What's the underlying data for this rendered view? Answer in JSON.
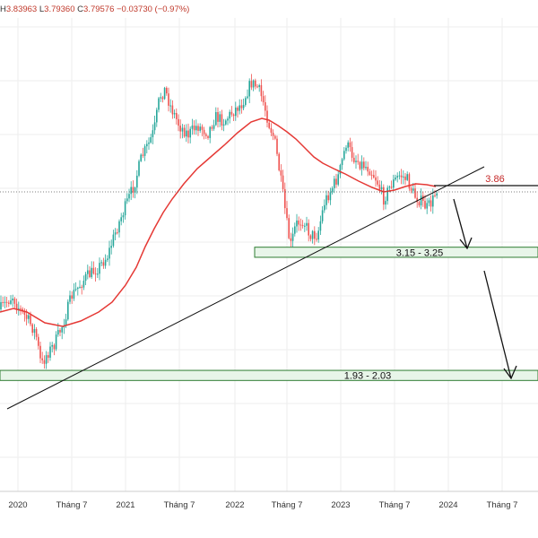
{
  "ohlc": {
    "h_label": "H",
    "h_value": "3.83963",
    "l_label": "L",
    "l_value": "3.79360",
    "c_label": "C",
    "c_value": "3.79576",
    "change": "−0.03730 (−0.97%)"
  },
  "chart_data": {
    "type": "candlestick",
    "x_ticks": [
      "2020",
      "Tháng 7",
      "2021",
      "Tháng 7",
      "2022",
      "Tháng 7",
      "2023",
      "Tháng 7",
      "2024",
      "Tháng 7"
    ],
    "price_level_label": "3.86",
    "price_level": 3.86,
    "zones": [
      {
        "label": "3.15 - 3.25",
        "low": 3.15,
        "high": 3.25
      },
      {
        "label": "1.93 - 2.03",
        "low": 1.93,
        "high": 2.03
      }
    ],
    "colors": {
      "up": "#26a69a",
      "down": "#ef5350",
      "moving_average": "#e53935",
      "trendline": "#111111",
      "zone_fill": "#e8f5e9",
      "zone_border": "#2e7d32"
    }
  }
}
